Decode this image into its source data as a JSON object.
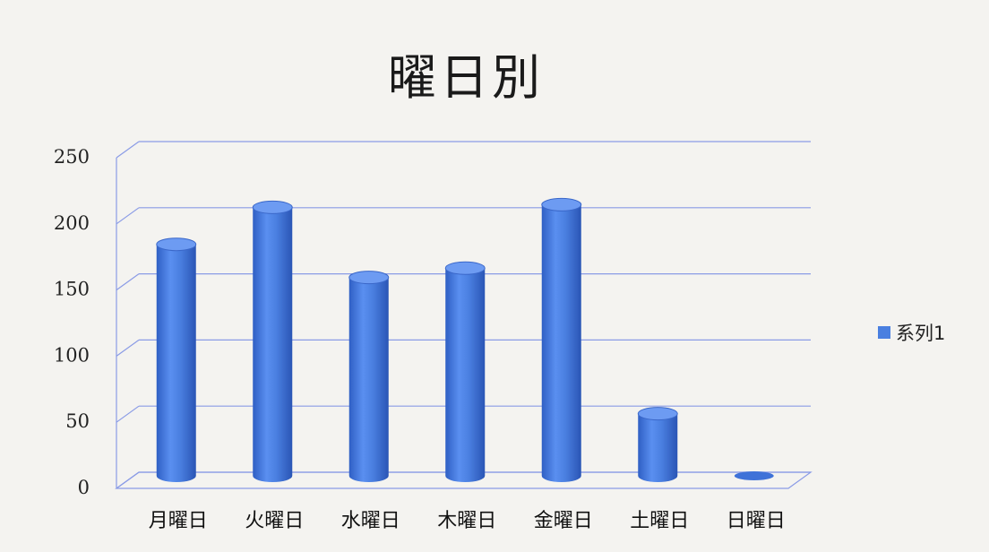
{
  "chart_data": {
    "type": "bar",
    "title": "曜日別",
    "categories": [
      "月曜日",
      "火曜日",
      "水曜日",
      "木曜日",
      "金曜日",
      "土曜日",
      "日曜日"
    ],
    "series": [
      {
        "name": "系列1",
        "values": [
          175,
          203,
          150,
          157,
          205,
          47,
          2
        ]
      }
    ],
    "ylim": [
      0,
      250
    ],
    "yticks": [
      0,
      50,
      100,
      150,
      200,
      250
    ],
    "grid": true,
    "legend_position": "right",
    "bar_color": "#4a7fe0"
  }
}
